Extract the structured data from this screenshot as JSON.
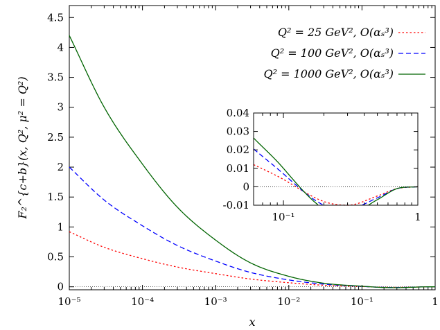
{
  "chart_data": [
    {
      "type": "line",
      "xlabel": "x",
      "ylabel": "F₂^{c+b}(x, Q², μ² = Q²)",
      "xscale": "log",
      "xlim": [
        1e-05,
        1
      ],
      "ylim": [
        -0.05,
        4.7
      ],
      "xticks": [
        "10⁻⁵",
        "10⁻⁴",
        "10⁻³",
        "10⁻²",
        "10⁻¹",
        "1"
      ],
      "yticks": [
        "0",
        "0.5",
        "1",
        "1.5",
        "2",
        "2.5",
        "3",
        "3.5",
        "4",
        "4.5"
      ],
      "legend_position": "top-right",
      "grid": false,
      "zero_line": true,
      "series": [
        {
          "name": "Q² = 25 GeV², O(αₛ³)",
          "color": "#ff0000",
          "dash": "dotted",
          "x": [
            1e-05,
            3e-05,
            0.0001,
            0.0003,
            0.001,
            0.003,
            0.01,
            0.03,
            0.1,
            0.2,
            0.3,
            0.5,
            0.7,
            1
          ],
          "y": [
            0.92,
            0.66,
            0.47,
            0.33,
            0.22,
            0.13,
            0.068,
            0.026,
            0.004,
            -0.008,
            -0.01,
            -0.005,
            -0.001,
            0
          ]
        },
        {
          "name": "Q² = 100 GeV², O(αₛ³)",
          "color": "#0000ff",
          "dash": "dashed",
          "x": [
            1e-05,
            3e-05,
            0.0001,
            0.0003,
            0.001,
            0.003,
            0.01,
            0.03,
            0.1,
            0.2,
            0.3,
            0.5,
            0.7,
            1
          ],
          "y": [
            2.0,
            1.45,
            1.02,
            0.69,
            0.43,
            0.24,
            0.115,
            0.045,
            0.007,
            -0.01,
            -0.012,
            -0.006,
            -0.001,
            0
          ]
        },
        {
          "name": "Q² = 1000 GeV², O(αₛ³)",
          "color": "#006400",
          "dash": "solid",
          "x": [
            1e-05,
            3e-05,
            0.0001,
            0.0003,
            0.001,
            0.003,
            0.01,
            0.03,
            0.1,
            0.2,
            0.3,
            0.5,
            0.7,
            1
          ],
          "y": [
            4.2,
            3.0,
            2.05,
            1.33,
            0.78,
            0.4,
            0.175,
            0.06,
            0.01,
            -0.012,
            -0.015,
            -0.007,
            -0.001,
            0
          ]
        }
      ]
    },
    {
      "type": "line",
      "xscale": "log",
      "xlim": [
        0.06,
        1
      ],
      "ylim": [
        -0.01,
        0.04
      ],
      "xticks": [
        "10⁻¹",
        "1"
      ],
      "yticks": [
        "-0.01",
        "0",
        "0.01",
        "0.02",
        "0.03",
        "0.04"
      ],
      "zero_line": true,
      "series_ref": "main"
    }
  ]
}
